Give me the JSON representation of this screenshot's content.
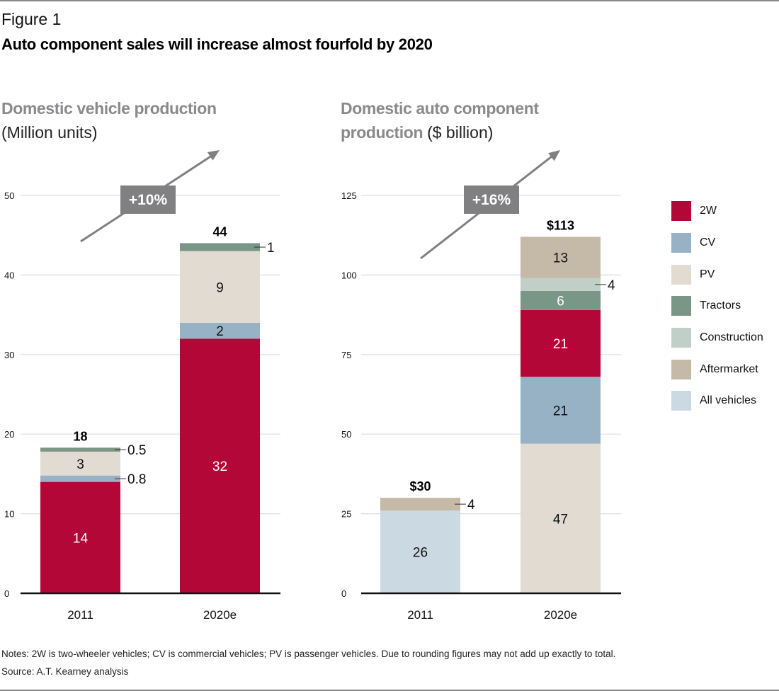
{
  "figure_label": "Figure 1",
  "figure_title": "Auto component sales will increase almost fourfold by 2020",
  "colors": {
    "2W": "#b30837",
    "CV": "#97b2c5",
    "PV": "#e1dbd2",
    "Tractors": "#7a9686",
    "Construction": "#c0cfc8",
    "Aftermarket": "#c5b9a8",
    "All vehicles": "#cbd9e3",
    "badge": "#808083",
    "grid": "#dddddd",
    "axis": "#111111"
  },
  "legend": [
    {
      "key": "2W",
      "label": "2W"
    },
    {
      "key": "CV",
      "label": "CV"
    },
    {
      "key": "PV",
      "label": "PV"
    },
    {
      "key": "Tractors",
      "label": "Tractors"
    },
    {
      "key": "Construction",
      "label": "Construction"
    },
    {
      "key": "Aftermarket",
      "label": "Aftermarket"
    },
    {
      "key": "All vehicles",
      "label": "All vehicles"
    }
  ],
  "notes": "Notes: 2W is two-wheeler vehicles; CV is commercial vehicles; PV is passenger vehicles. Due to rounding figures may not add up exactly to total.",
  "source": "Source: A.T. Kearney analysis",
  "chart_data": [
    {
      "type": "bar",
      "stacked": true,
      "title": "Domestic vehicle production",
      "unit": "(Million units)",
      "categories": [
        "2011",
        "2020e"
      ],
      "ylim": [
        0,
        50
      ],
      "yticks": [
        0,
        10,
        20,
        30,
        40,
        50
      ],
      "grid": true,
      "growth_badge": "+10%",
      "totals": [
        "18",
        "44"
      ],
      "series": [
        {
          "name": "2W",
          "values": [
            14,
            32
          ],
          "labels": [
            "14",
            "32"
          ],
          "label_color": [
            "#ffffff",
            "#ffffff"
          ],
          "outside": [
            false,
            false
          ]
        },
        {
          "name": "CV",
          "values": [
            0.8,
            2
          ],
          "labels": [
            "0.8",
            "2"
          ],
          "label_color": [
            "#111111",
            "#111111"
          ],
          "outside": [
            true,
            false
          ]
        },
        {
          "name": "PV",
          "values": [
            3,
            9
          ],
          "labels": [
            "3",
            "9"
          ],
          "label_color": [
            "#111111",
            "#111111"
          ],
          "outside": [
            false,
            false
          ]
        },
        {
          "name": "Tractors",
          "values": [
            0.5,
            1
          ],
          "labels": [
            "0.5",
            "1"
          ],
          "label_color": [
            "#111111",
            "#111111"
          ],
          "outside": [
            true,
            true
          ]
        }
      ]
    },
    {
      "type": "bar",
      "stacked": true,
      "title": "Domestic auto component production",
      "unit": "($ billion)",
      "categories": [
        "2011",
        "2020e"
      ],
      "ylim": [
        0,
        125
      ],
      "yticks": [
        0,
        25,
        50,
        75,
        100,
        125
      ],
      "grid": true,
      "growth_badge": "+16%",
      "totals": [
        "$30",
        "$113"
      ],
      "series": [
        {
          "name": "All vehicles",
          "values": [
            26,
            0
          ],
          "labels": [
            "26",
            ""
          ],
          "label_color": [
            "#111111",
            "#111111"
          ],
          "outside": [
            false,
            false
          ]
        },
        {
          "name": "PV",
          "values": [
            0,
            47
          ],
          "labels": [
            "",
            "47"
          ],
          "label_color": [
            "#111111",
            "#111111"
          ],
          "outside": [
            false,
            false
          ]
        },
        {
          "name": "CV",
          "values": [
            0,
            21
          ],
          "labels": [
            "",
            "21"
          ],
          "label_color": [
            "#111111",
            "#111111"
          ],
          "outside": [
            false,
            false
          ]
        },
        {
          "name": "2W",
          "values": [
            0,
            21
          ],
          "labels": [
            "",
            "21"
          ],
          "label_color": [
            "#ffffff",
            "#ffffff"
          ],
          "outside": [
            false,
            false
          ]
        },
        {
          "name": "Tractors",
          "values": [
            0,
            6
          ],
          "labels": [
            "",
            "6"
          ],
          "label_color": [
            "#ffffff",
            "#ffffff"
          ],
          "outside": [
            false,
            false
          ]
        },
        {
          "name": "Construction",
          "values": [
            0,
            4
          ],
          "labels": [
            "",
            "4"
          ],
          "label_color": [
            "#111111",
            "#111111"
          ],
          "outside": [
            false,
            true
          ]
        },
        {
          "name": "Aftermarket",
          "values": [
            4,
            13
          ],
          "labels": [
            "4",
            "13"
          ],
          "label_color": [
            "#111111",
            "#111111"
          ],
          "outside": [
            true,
            false
          ]
        }
      ]
    }
  ]
}
